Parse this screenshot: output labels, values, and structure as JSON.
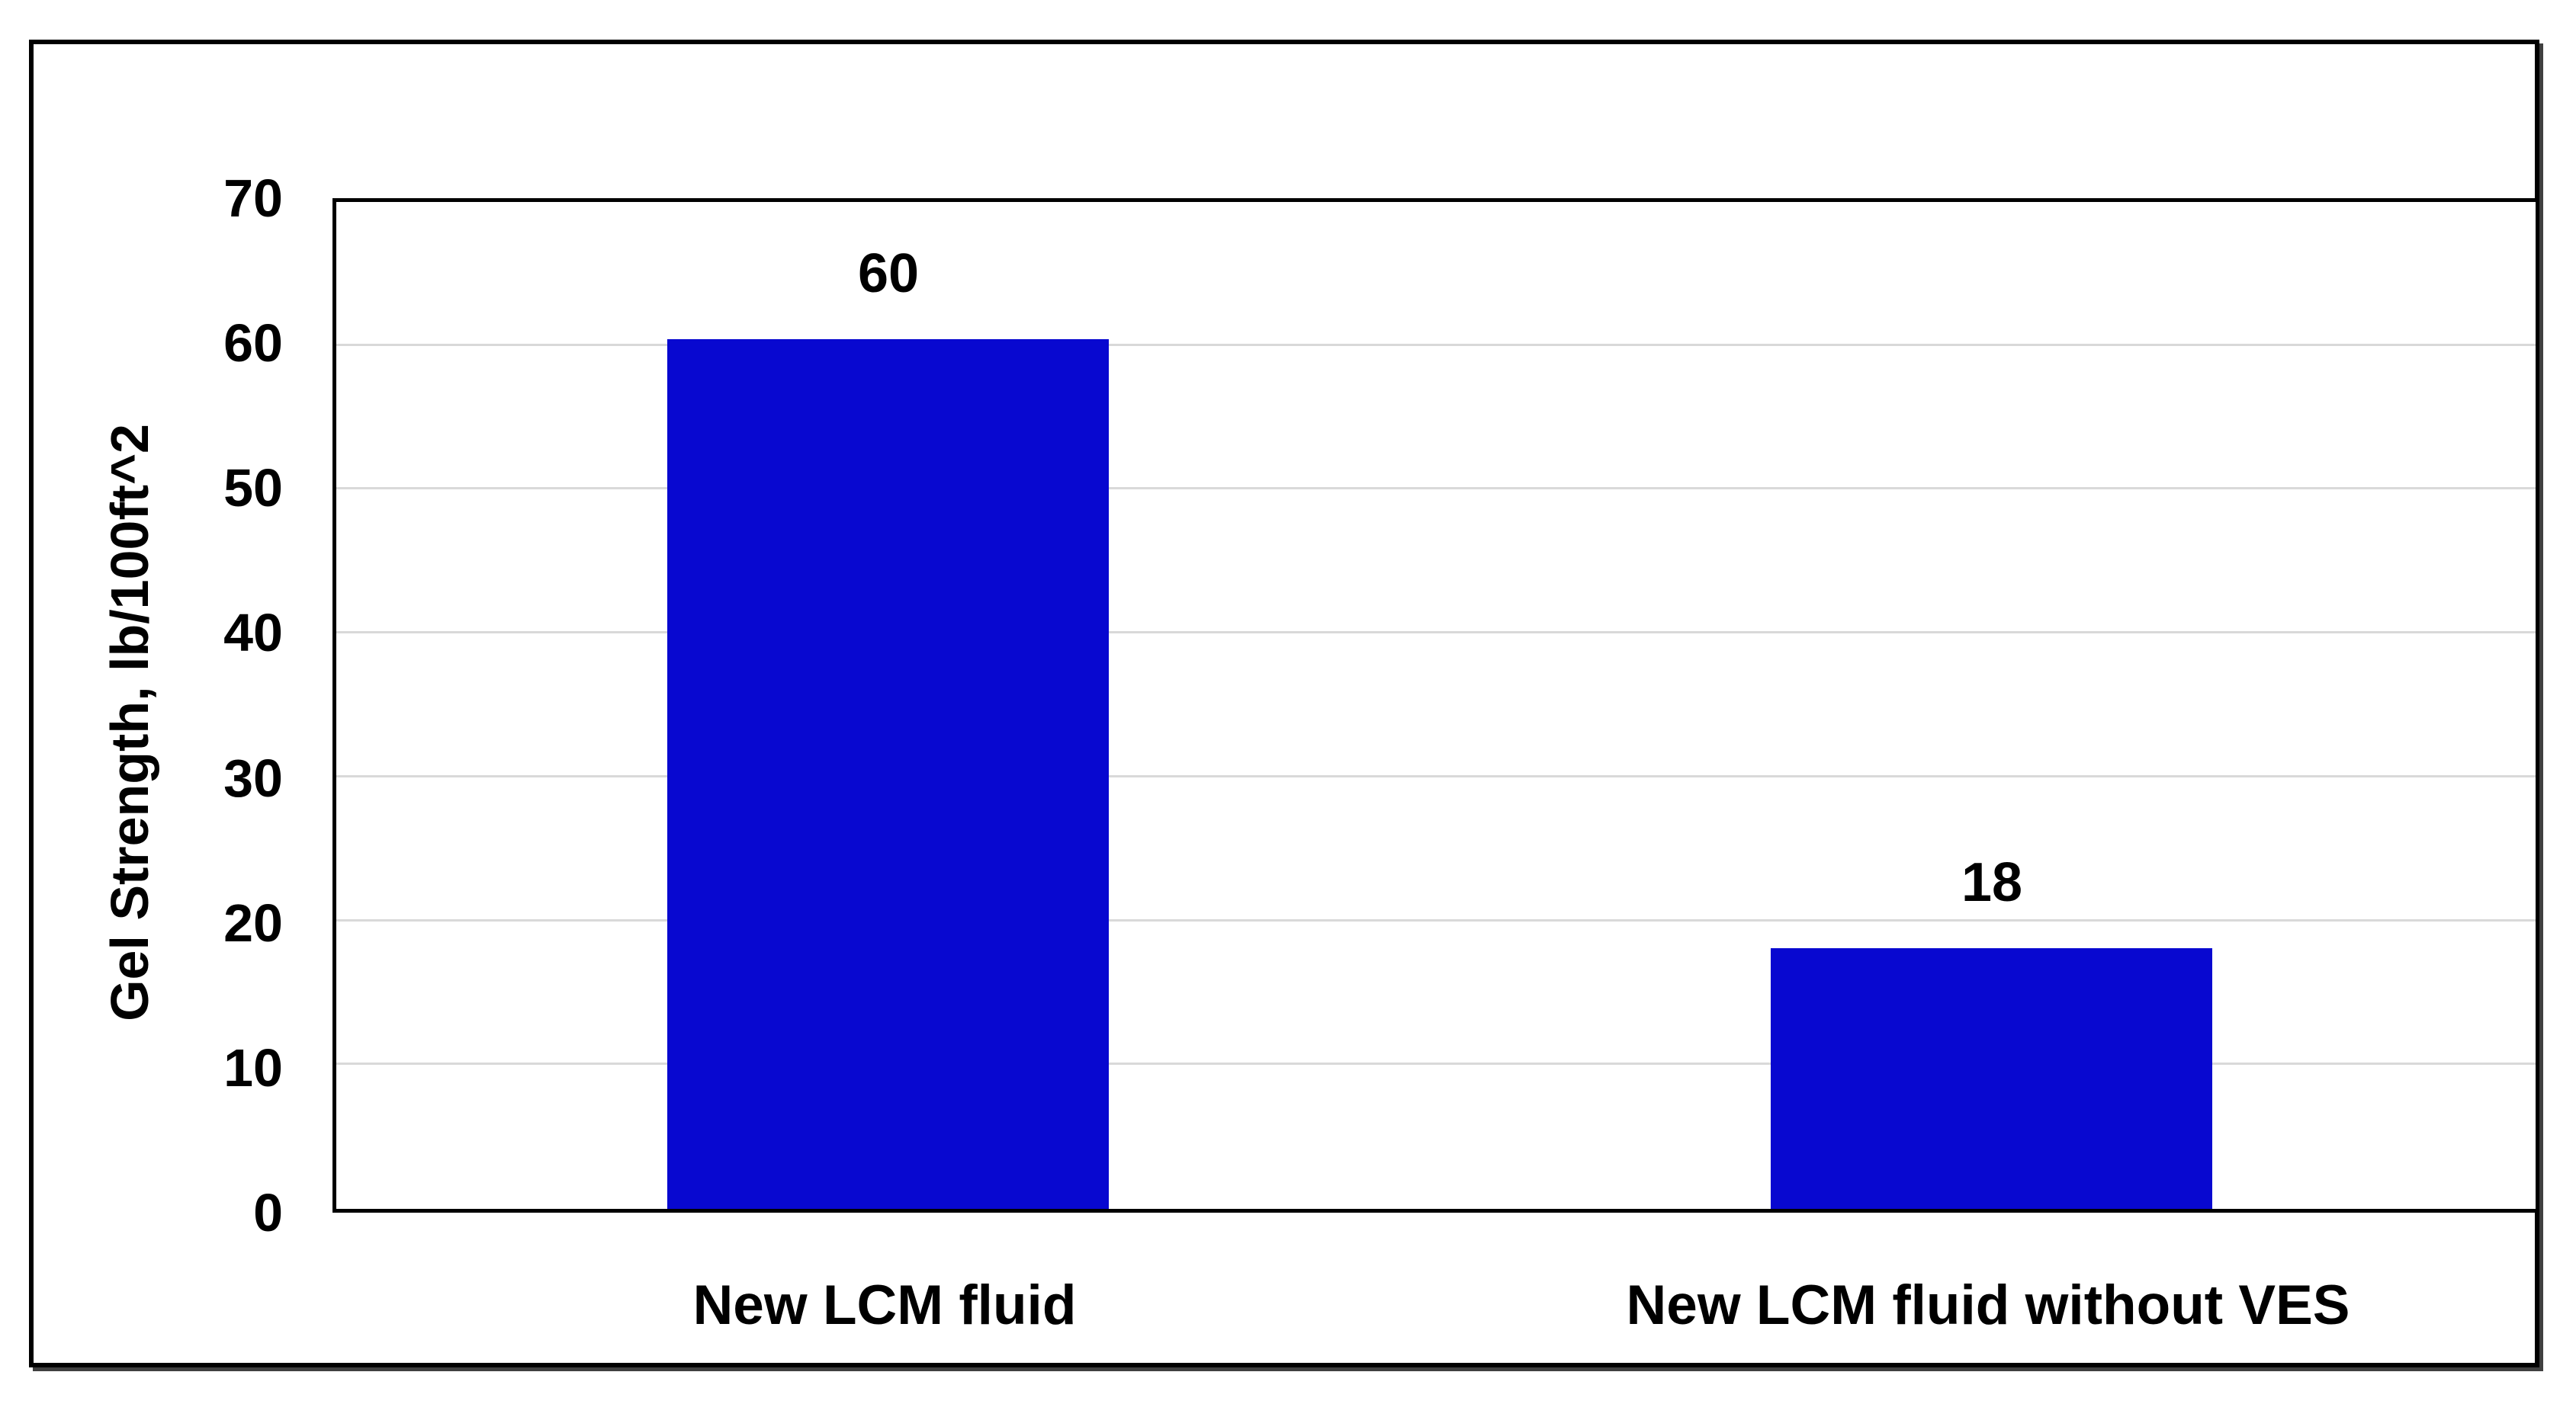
{
  "chart_data": {
    "type": "bar",
    "title": "",
    "xlabel": "",
    "ylabel": "Gel Strength, lb/100ft^2",
    "categories": [
      "New LCM fluid",
      "New LCM fluid without VES"
    ],
    "values": [
      60,
      18
    ],
    "data_labels": [
      "60",
      "18"
    ],
    "ylim": [
      0,
      70
    ],
    "ytick_step": 10,
    "yticks": [
      0,
      10,
      20,
      30,
      40,
      50,
      60,
      70
    ],
    "grid": true,
    "grid_orientation": "horizontal",
    "legend": "none",
    "colors": {
      "bar": "#0808d0",
      "grid": "#d9d9d9",
      "axis": "#000000",
      "frame_border": "#000000",
      "background": "#ffffff",
      "text": "#000000"
    }
  }
}
